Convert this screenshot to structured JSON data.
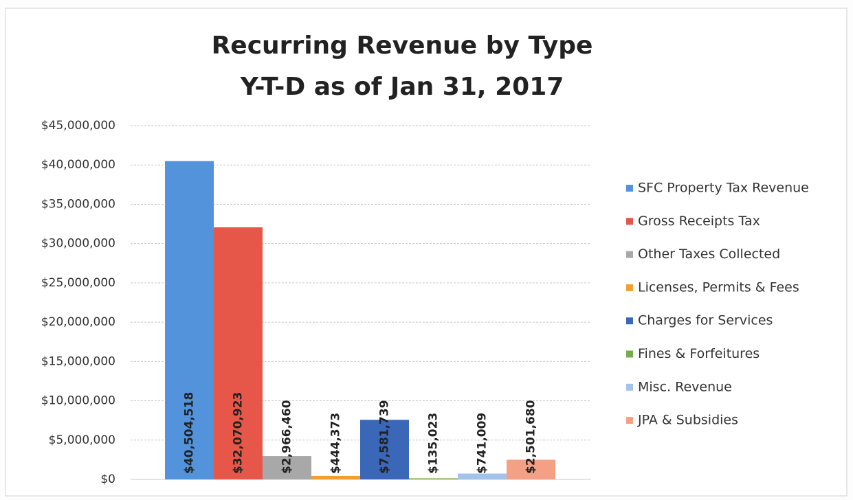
{
  "chart_data": {
    "type": "bar",
    "title": "Recurring Revenue by Type",
    "subtitle": "Y-T-D as of Jan 31, 2017",
    "series": [
      {
        "name": "SFC Property Tax Revenue",
        "color": "#5393dc",
        "values": [
          40504518
        ],
        "value_labels": [
          "$40,504,518"
        ]
      },
      {
        "name": "Gross Receipts Tax",
        "color": "#e6574a",
        "values": [
          32070923
        ],
        "value_labels": [
          "$32,070,923"
        ]
      },
      {
        "name": "Other Taxes Collected",
        "color": "#a8a8a8",
        "values": [
          2966460
        ],
        "value_labels": [
          "$2,966,460"
        ]
      },
      {
        "name": "Licenses, Permits & Fees",
        "color": "#f0a032",
        "values": [
          444373
        ],
        "value_labels": [
          "$444,373"
        ]
      },
      {
        "name": "Charges for Services",
        "color": "#3b67b8",
        "values": [
          7581739
        ],
        "value_labels": [
          "$7,581,739"
        ]
      },
      {
        "name": "Fines & Forfeitures",
        "color": "#76ad4a",
        "values": [
          135023
        ],
        "value_labels": [
          "$135,023"
        ]
      },
      {
        "name": "Misc. Revenue",
        "color": "#a2c4ea",
        "values": [
          741009
        ],
        "value_labels": [
          "$741,009"
        ]
      },
      {
        "name": "JPA & Subsidies",
        "color": "#f4a085",
        "values": [
          2501680
        ],
        "value_labels": [
          "$2,501,680"
        ]
      }
    ],
    "ylim": [
      0,
      45000000
    ],
    "yticks": [
      {
        "value": 0,
        "label": "$0"
      },
      {
        "value": 5000000,
        "label": "$5,000,000"
      },
      {
        "value": 10000000,
        "label": "$10,000,000"
      },
      {
        "value": 15000000,
        "label": "$15,000,000"
      },
      {
        "value": 20000000,
        "label": "$20,000,000"
      },
      {
        "value": 25000000,
        "label": "$25,000,000"
      },
      {
        "value": 30000000,
        "label": "$30,000,000"
      },
      {
        "value": 35000000,
        "label": "$35,000,000"
      },
      {
        "value": 40000000,
        "label": "$40,000,000"
      },
      {
        "value": 45000000,
        "label": "$45,000,000"
      }
    ],
    "grid": true,
    "legend": "right"
  }
}
